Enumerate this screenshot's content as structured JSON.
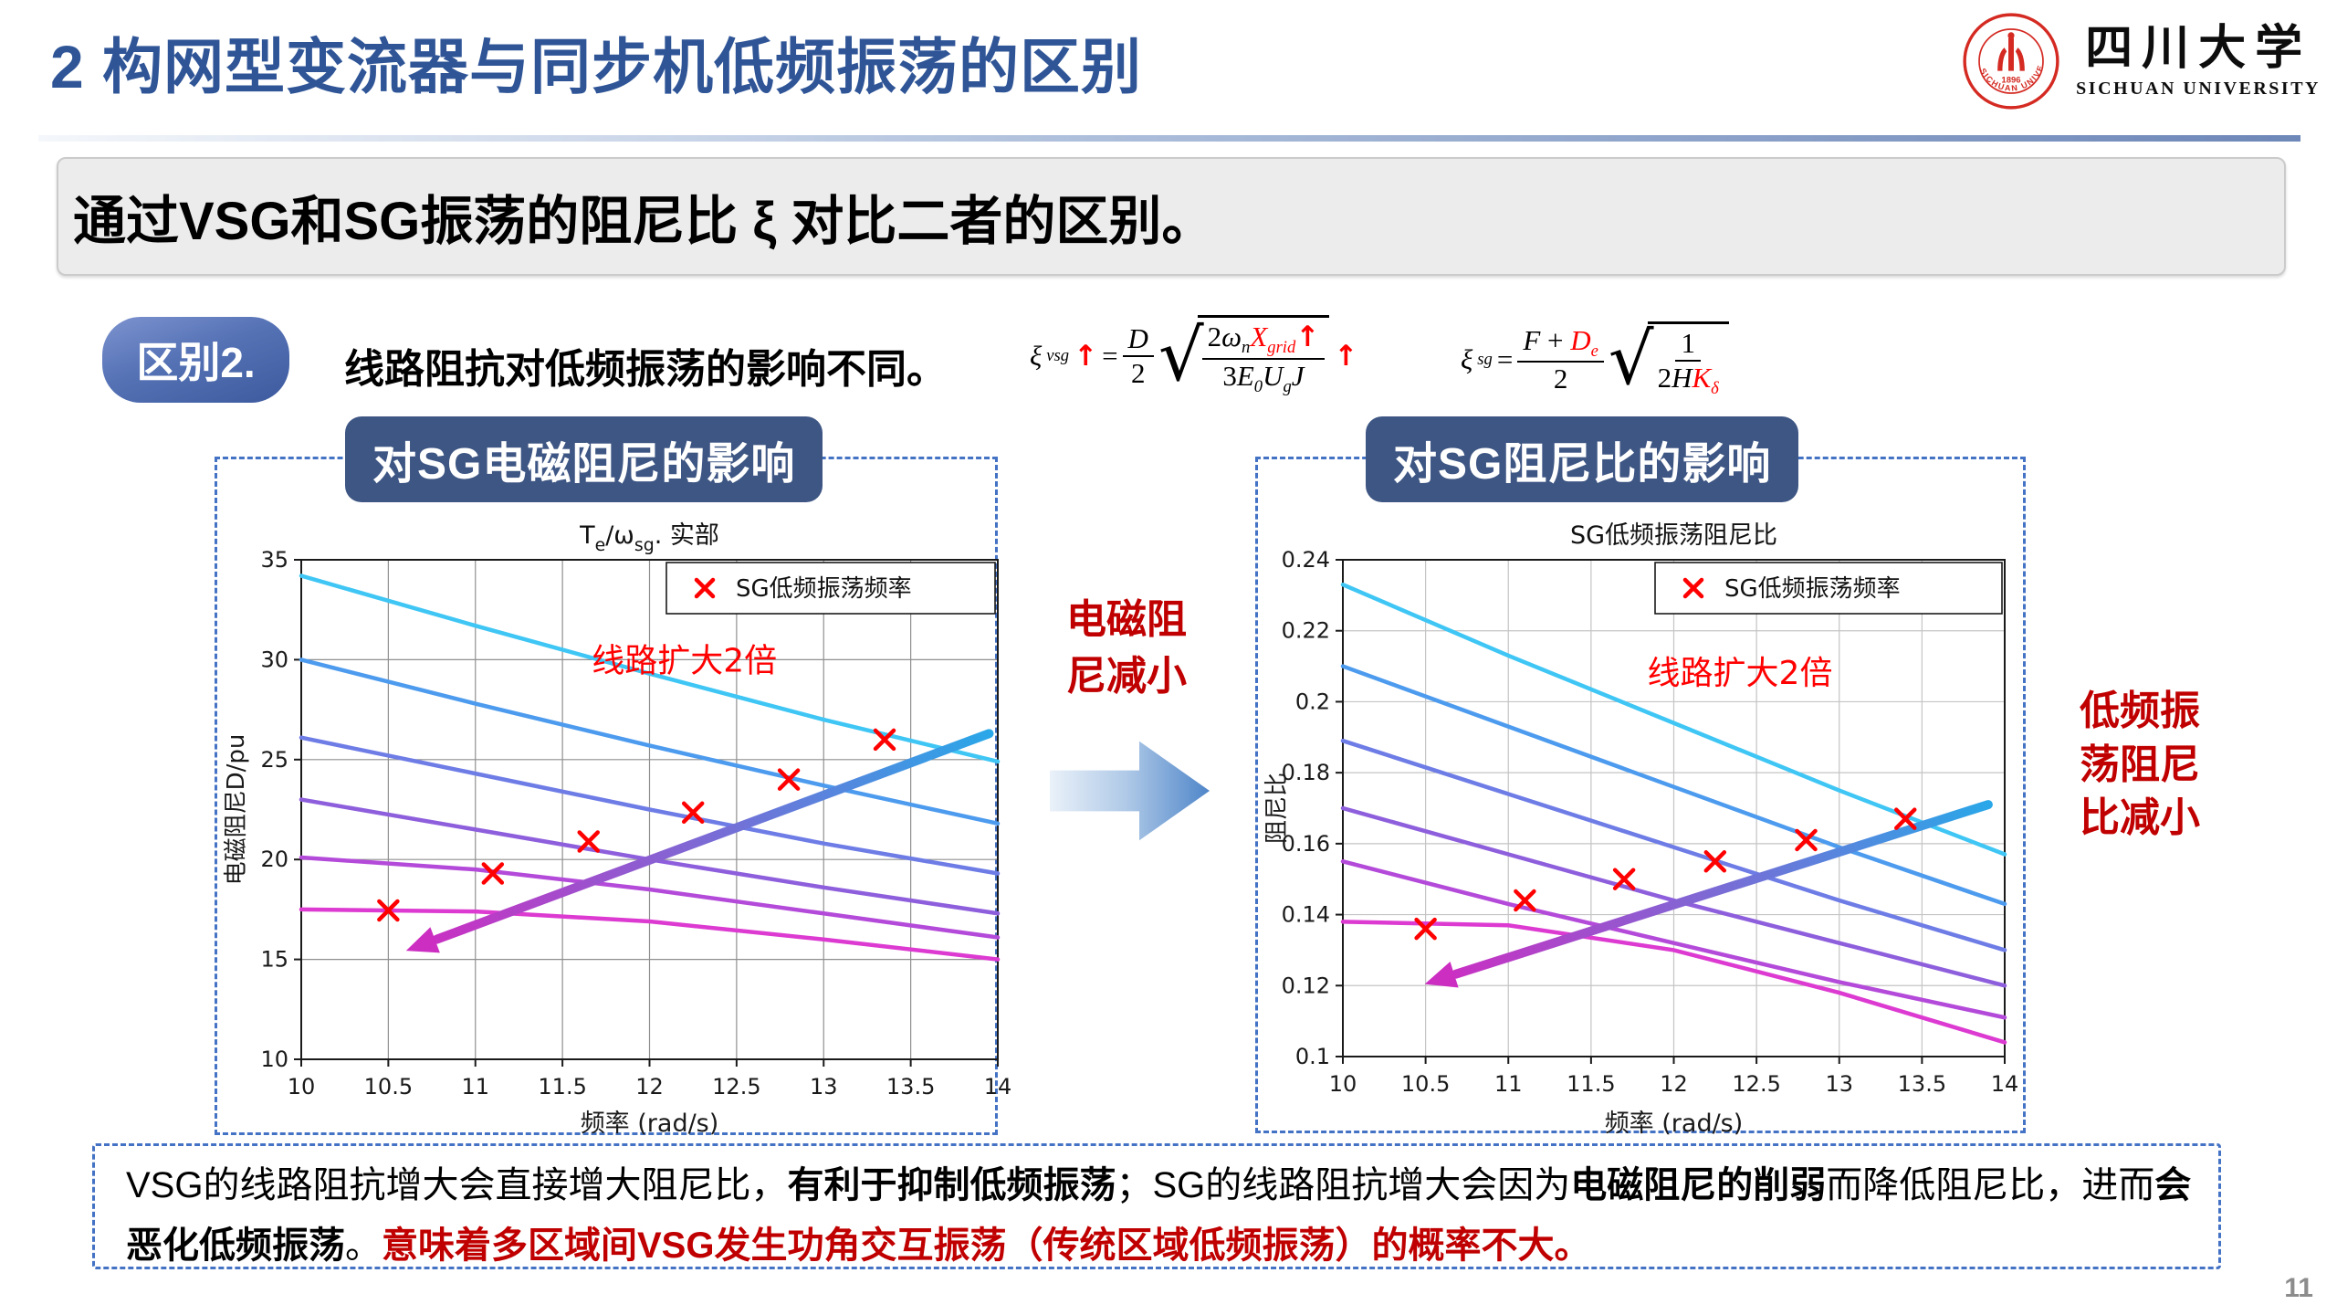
{
  "slide": {
    "title": "2 构网型变流器与同步机低频振荡的区别",
    "page_number": "11",
    "banner_text": "通过VSG和SG振荡的阻尼比 ξ 对比二者的区别。",
    "badge": "区别2.",
    "statement": "线路阻抗对低频振荡的影响不同。"
  },
  "logo": {
    "cn": "四川大学",
    "en": "SICHUAN UNIVERSITY",
    "seal_arc_text": "SICHUAN UNIVERSITY",
    "seal_year": "1896"
  },
  "symbols": {
    "sqrt": "√"
  },
  "formulas": {
    "vsg": {
      "lhs": [
        {
          "t": "ξ",
          "i": true
        },
        {
          "sub": "vsg"
        },
        {
          "t": "↑",
          "red": true
        },
        {
          "t": "="
        }
      ],
      "num": [
        {
          "t": "D",
          "i": true
        }
      ],
      "den": [
        {
          "t": "2"
        }
      ],
      "rad_num": [
        {
          "t": "2"
        },
        {
          "t": "ω",
          "i": true
        },
        {
          "sub": "n"
        },
        {
          "t": "X",
          "i": true,
          "red": true
        },
        {
          "sub": "grid",
          "red": true
        },
        {
          "t": "↑",
          "red": true
        }
      ],
      "rad_den": [
        {
          "t": "3"
        },
        {
          "t": "E",
          "i": true
        },
        {
          "sub": "0"
        },
        {
          "t": "U",
          "i": true
        },
        {
          "sub": "g"
        },
        {
          "t": "J",
          "i": true
        }
      ],
      "tail": [
        {
          "t": "↑",
          "red": true
        }
      ]
    },
    "sg": {
      "lhs": [
        {
          "t": "ξ",
          "i": true
        },
        {
          "sub": "sg"
        },
        {
          "t": "="
        }
      ],
      "num": [
        {
          "t": "F",
          "i": true
        },
        {
          "t": " + "
        },
        {
          "t": "D",
          "i": true,
          "red": true
        },
        {
          "sub": "e",
          "red": true
        }
      ],
      "den": [
        {
          "t": "2"
        }
      ],
      "rad_num": [
        {
          "t": "1"
        }
      ],
      "rad_den": [
        {
          "t": "2"
        },
        {
          "t": "H",
          "i": true
        },
        {
          "t": "K",
          "i": true,
          "red": true
        },
        {
          "sub": "δ",
          "red": true
        }
      ],
      "tail": []
    }
  },
  "panels": [
    {
      "header": "对SG电磁阻尼的影响"
    },
    {
      "header": "对SG阻尼比的影响"
    }
  ],
  "middle_note": {
    "lines": [
      "电磁阻",
      "尼减小"
    ]
  },
  "side_note": {
    "lines": [
      "低频振",
      "荡阻尼",
      "比减小"
    ]
  },
  "bottom_box": {
    "segments": [
      {
        "t": "VSG的线路阻抗增大会直接增大阻尼比，"
      },
      {
        "t": "有利于抑制低频振荡",
        "b": true
      },
      {
        "t": "；SG的线路阻抗增大会因为"
      },
      {
        "t": "电磁阻尼的削弱",
        "b": true
      },
      {
        "t": "而降低阻尼比，进而"
      },
      {
        "t": "会恶化低频振荡",
        "b": true
      },
      {
        "t": "。"
      },
      {
        "t": "意味着多区域间VSG发生功角交互振荡（传统区域低频振荡）的概率不大。",
        "red": true,
        "b": true
      }
    ]
  },
  "chart_data": [
    {
      "type": "line",
      "title": "T~e~/ω~sg~. 实部",
      "xlabel": "频率 (rad/s)",
      "ylabel": "电磁阻尼D/pu",
      "xlim": [
        10,
        14
      ],
      "ylim": [
        10,
        35
      ],
      "xticks": [
        10,
        10.5,
        11,
        11.5,
        12,
        12.5,
        13,
        13.5,
        14
      ],
      "xtick_labels": [
        "10",
        "10.5",
        "11",
        "11.5",
        "12",
        "12.5",
        "13",
        "13.5",
        "14"
      ],
      "yticks": [
        10,
        15,
        20,
        25,
        30,
        35
      ],
      "ytick_labels": [
        "10",
        "15",
        "20",
        "25",
        "30",
        "35"
      ],
      "x": [
        10,
        11,
        12,
        13,
        14
      ],
      "series": [
        {
          "name": "line-1",
          "color": "#3FC6F4",
          "values": [
            34.2,
            31.7,
            29.3,
            27.0,
            24.9
          ]
        },
        {
          "name": "line-2",
          "color": "#4D9BEE",
          "values": [
            30.0,
            27.8,
            25.7,
            23.7,
            21.8
          ]
        },
        {
          "name": "line-3",
          "color": "#6E7CE6",
          "values": [
            26.1,
            24.3,
            22.5,
            20.8,
            19.3
          ]
        },
        {
          "name": "line-4",
          "color": "#8E5FDC",
          "values": [
            23.0,
            21.5,
            20.0,
            18.6,
            17.3
          ]
        },
        {
          "name": "line-5",
          "color": "#B44AD9",
          "values": [
            20.1,
            19.5,
            18.5,
            17.3,
            16.1
          ]
        },
        {
          "name": "line-6",
          "color": "#DC3AD1",
          "values": [
            17.5,
            17.4,
            16.9,
            16.0,
            15.0
          ]
        }
      ],
      "markers": {
        "label": "SG低频振荡频率",
        "color": "#FF0000",
        "points": [
          [
            10.5,
            17.45
          ],
          [
            11.1,
            19.3
          ],
          [
            11.65,
            20.9
          ],
          [
            12.25,
            22.35
          ],
          [
            12.8,
            24.0
          ],
          [
            13.35,
            26.0
          ]
        ]
      },
      "legend": {
        "label": "SG低频振荡频率",
        "position": "top-right"
      },
      "annotation": {
        "text": "线路扩大2倍",
        "x": 12.2,
        "y": 29.4,
        "color": "#FF0000"
      },
      "arrow": {
        "x1": 13.95,
        "y1": 26.3,
        "x2": 10.7,
        "y2": 15.75,
        "color_start": "#2AA7E8",
        "color_end": "#CC2EC2"
      },
      "grid": true
    },
    {
      "type": "line",
      "title": "SG低频振荡阻尼比",
      "xlabel": "频率 (rad/s)",
      "ylabel": "阻尼比",
      "xlim": [
        10,
        14
      ],
      "ylim": [
        0.1,
        0.24
      ],
      "xticks": [
        10,
        10.5,
        11,
        11.5,
        12,
        12.5,
        13,
        13.5,
        14
      ],
      "xtick_labels": [
        "10",
        "10.5",
        "11",
        "11.5",
        "12",
        "12.5",
        "13",
        "13.5",
        "14"
      ],
      "yticks": [
        0.1,
        0.12,
        0.14,
        0.16,
        0.18,
        0.2,
        0.22,
        0.24
      ],
      "ytick_labels": [
        "0.1",
        "0.12",
        "0.14",
        "0.16",
        "0.18",
        "0.2",
        "0.22",
        "0.24"
      ],
      "x": [
        10,
        11,
        12,
        13,
        14
      ],
      "series": [
        {
          "name": "line-1",
          "color": "#3FC6F4",
          "values": [
            0.233,
            0.213,
            0.194,
            0.175,
            0.157
          ]
        },
        {
          "name": "line-2",
          "color": "#4D9BEE",
          "values": [
            0.21,
            0.193,
            0.176,
            0.159,
            0.143
          ]
        },
        {
          "name": "line-3",
          "color": "#6E7CE6",
          "values": [
            0.189,
            0.174,
            0.159,
            0.144,
            0.13
          ]
        },
        {
          "name": "line-4",
          "color": "#8E5FDC",
          "values": [
            0.17,
            0.157,
            0.144,
            0.132,
            0.12
          ]
        },
        {
          "name": "line-5",
          "color": "#B44AD9",
          "values": [
            0.155,
            0.143,
            0.132,
            0.121,
            0.111
          ]
        },
        {
          "name": "line-6",
          "color": "#DC3AD1",
          "values": [
            0.138,
            0.137,
            0.13,
            0.118,
            0.104
          ]
        }
      ],
      "markers": {
        "label": "SG低频振荡频率",
        "color": "#FF0000",
        "points": [
          [
            10.5,
            0.136
          ],
          [
            11.1,
            0.144
          ],
          [
            11.7,
            0.15
          ],
          [
            12.25,
            0.155
          ],
          [
            12.8,
            0.161
          ],
          [
            13.4,
            0.167
          ]
        ]
      },
      "legend": {
        "label": "SG低频振荡频率",
        "position": "top-right"
      },
      "annotation": {
        "text": "线路扩大2倍",
        "x": 12.4,
        "y": 0.205,
        "color": "#FF0000"
      },
      "arrow": {
        "x1": 13.9,
        "y1": 0.171,
        "x2": 10.6,
        "y2": 0.122,
        "color_start": "#2AA7E8",
        "color_end": "#CC2EC2"
      },
      "grid": true
    }
  ]
}
